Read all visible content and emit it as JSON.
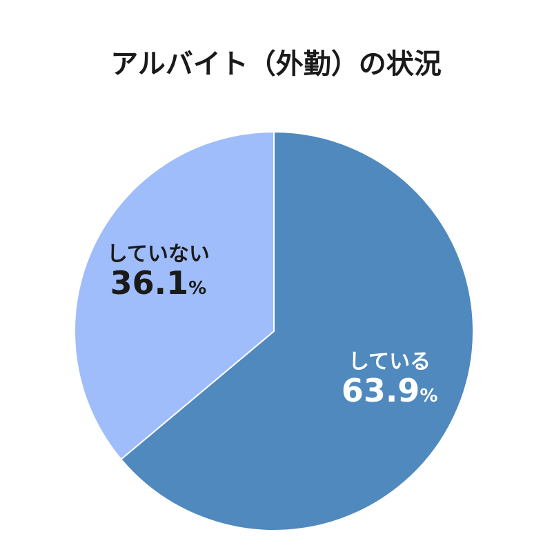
{
  "chart_data": {
    "type": "pie",
    "title": "アルバイト（外勤）の状況",
    "categories": [
      "している",
      "していない"
    ],
    "values": [
      63.9,
      36.1
    ],
    "value_labels": [
      "63.9%",
      "36.1%"
    ],
    "colors": [
      "#4f89bd",
      "#9fbcfb"
    ]
  }
}
